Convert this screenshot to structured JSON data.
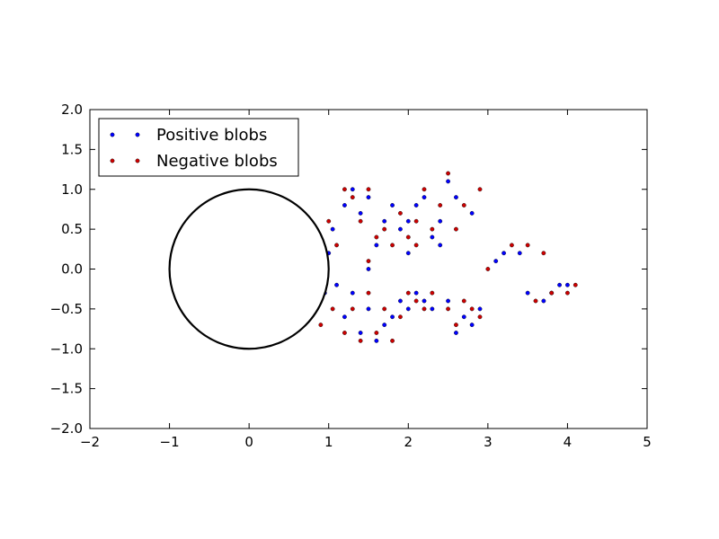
{
  "chart_data": {
    "type": "scatter",
    "title": "",
    "xlabel": "",
    "ylabel": "",
    "xlim": [
      -2,
      5
    ],
    "ylim": [
      -2,
      2
    ],
    "grid": false,
    "legend_position": "top-left",
    "xticks": [
      -2,
      -1,
      0,
      1,
      2,
      3,
      4,
      5
    ],
    "yticks": [
      -2.0,
      -1.5,
      -1.0,
      -0.5,
      0.0,
      0.5,
      1.0,
      1.5,
      2.0
    ],
    "xtick_labels": [
      "−2",
      "−1",
      "0",
      "1",
      "2",
      "3",
      "4",
      "5"
    ],
    "ytick_labels": [
      "−2.0",
      "−1.5",
      "−1.0",
      "−0.5",
      "0.0",
      "0.5",
      "1.0",
      "1.5",
      "2.0"
    ],
    "circle": {
      "center": [
        0,
        0
      ],
      "radius": 1,
      "color": "#000000"
    },
    "series": [
      {
        "name": "Positive blobs",
        "color": "#0000ff",
        "marker": "circle",
        "points": [
          [
            1.3,
            1.0
          ],
          [
            1.5,
            0.9
          ],
          [
            1.7,
            0.6
          ],
          [
            1.9,
            0.5
          ],
          [
            2.1,
            0.8
          ],
          [
            2.3,
            0.4
          ],
          [
            2.5,
            1.1
          ],
          [
            2.6,
            0.9
          ],
          [
            2.8,
            0.7
          ],
          [
            1.6,
            0.3
          ],
          [
            2.0,
            0.6
          ],
          [
            2.2,
            0.9
          ],
          [
            1.4,
            0.7
          ],
          [
            1.8,
            0.8
          ],
          [
            2.4,
            0.6
          ],
          [
            1.2,
            0.8
          ],
          [
            1.3,
            -0.3
          ],
          [
            1.5,
            -0.5
          ],
          [
            1.7,
            -0.7
          ],
          [
            1.9,
            -0.4
          ],
          [
            2.1,
            -0.3
          ],
          [
            2.3,
            -0.5
          ],
          [
            2.5,
            -0.4
          ],
          [
            2.7,
            -0.6
          ],
          [
            2.9,
            -0.5
          ],
          [
            1.6,
            -0.9
          ],
          [
            1.8,
            -0.6
          ],
          [
            2.0,
            -0.5
          ],
          [
            2.6,
            -0.8
          ],
          [
            1.4,
            -0.8
          ],
          [
            1.2,
            -0.6
          ],
          [
            2.2,
            -0.4
          ],
          [
            3.2,
            0.2
          ],
          [
            3.4,
            0.2
          ],
          [
            3.5,
            -0.3
          ],
          [
            3.7,
            -0.4
          ],
          [
            3.9,
            -0.2
          ],
          [
            3.1,
            0.1
          ],
          [
            3.8,
            -0.3
          ],
          [
            4.0,
            -0.2
          ],
          [
            1.0,
            0.2
          ],
          [
            0.95,
            -0.3
          ],
          [
            1.05,
            0.5
          ],
          [
            1.1,
            -0.2
          ],
          [
            2.4,
            0.3
          ],
          [
            2.8,
            -0.7
          ],
          [
            1.5,
            0.0
          ],
          [
            2.0,
            0.2
          ]
        ]
      },
      {
        "name": "Negative blobs",
        "color": "#cc0000",
        "marker": "circle",
        "points": [
          [
            1.3,
            0.9
          ],
          [
            1.5,
            1.0
          ],
          [
            1.7,
            0.5
          ],
          [
            1.9,
            0.7
          ],
          [
            2.1,
            0.6
          ],
          [
            2.3,
            0.5
          ],
          [
            2.5,
            1.2
          ],
          [
            2.7,
            0.8
          ],
          [
            2.9,
            1.0
          ],
          [
            1.6,
            0.4
          ],
          [
            2.0,
            0.4
          ],
          [
            2.2,
            1.0
          ],
          [
            1.4,
            0.6
          ],
          [
            1.8,
            0.3
          ],
          [
            2.4,
            0.8
          ],
          [
            1.2,
            1.0
          ],
          [
            1.3,
            -0.5
          ],
          [
            1.5,
            -0.3
          ],
          [
            1.7,
            -0.5
          ],
          [
            1.9,
            -0.6
          ],
          [
            2.1,
            -0.4
          ],
          [
            2.3,
            -0.3
          ],
          [
            2.5,
            -0.5
          ],
          [
            2.7,
            -0.4
          ],
          [
            2.9,
            -0.6
          ],
          [
            1.6,
            -0.8
          ],
          [
            1.8,
            -0.9
          ],
          [
            2.0,
            -0.3
          ],
          [
            2.6,
            -0.7
          ],
          [
            1.4,
            -0.9
          ],
          [
            1.2,
            -0.8
          ],
          [
            2.2,
            -0.5
          ],
          [
            3.3,
            0.3
          ],
          [
            3.5,
            0.3
          ],
          [
            3.6,
            -0.4
          ],
          [
            3.8,
            -0.3
          ],
          [
            4.0,
            -0.3
          ],
          [
            3.0,
            0.0
          ],
          [
            3.7,
            0.2
          ],
          [
            4.1,
            -0.2
          ],
          [
            1.0,
            0.6
          ],
          [
            1.05,
            -0.5
          ],
          [
            1.1,
            0.3
          ],
          [
            0.9,
            -0.7
          ],
          [
            2.6,
            0.5
          ],
          [
            2.8,
            -0.5
          ],
          [
            1.5,
            0.1
          ],
          [
            2.1,
            0.3
          ]
        ]
      }
    ]
  }
}
